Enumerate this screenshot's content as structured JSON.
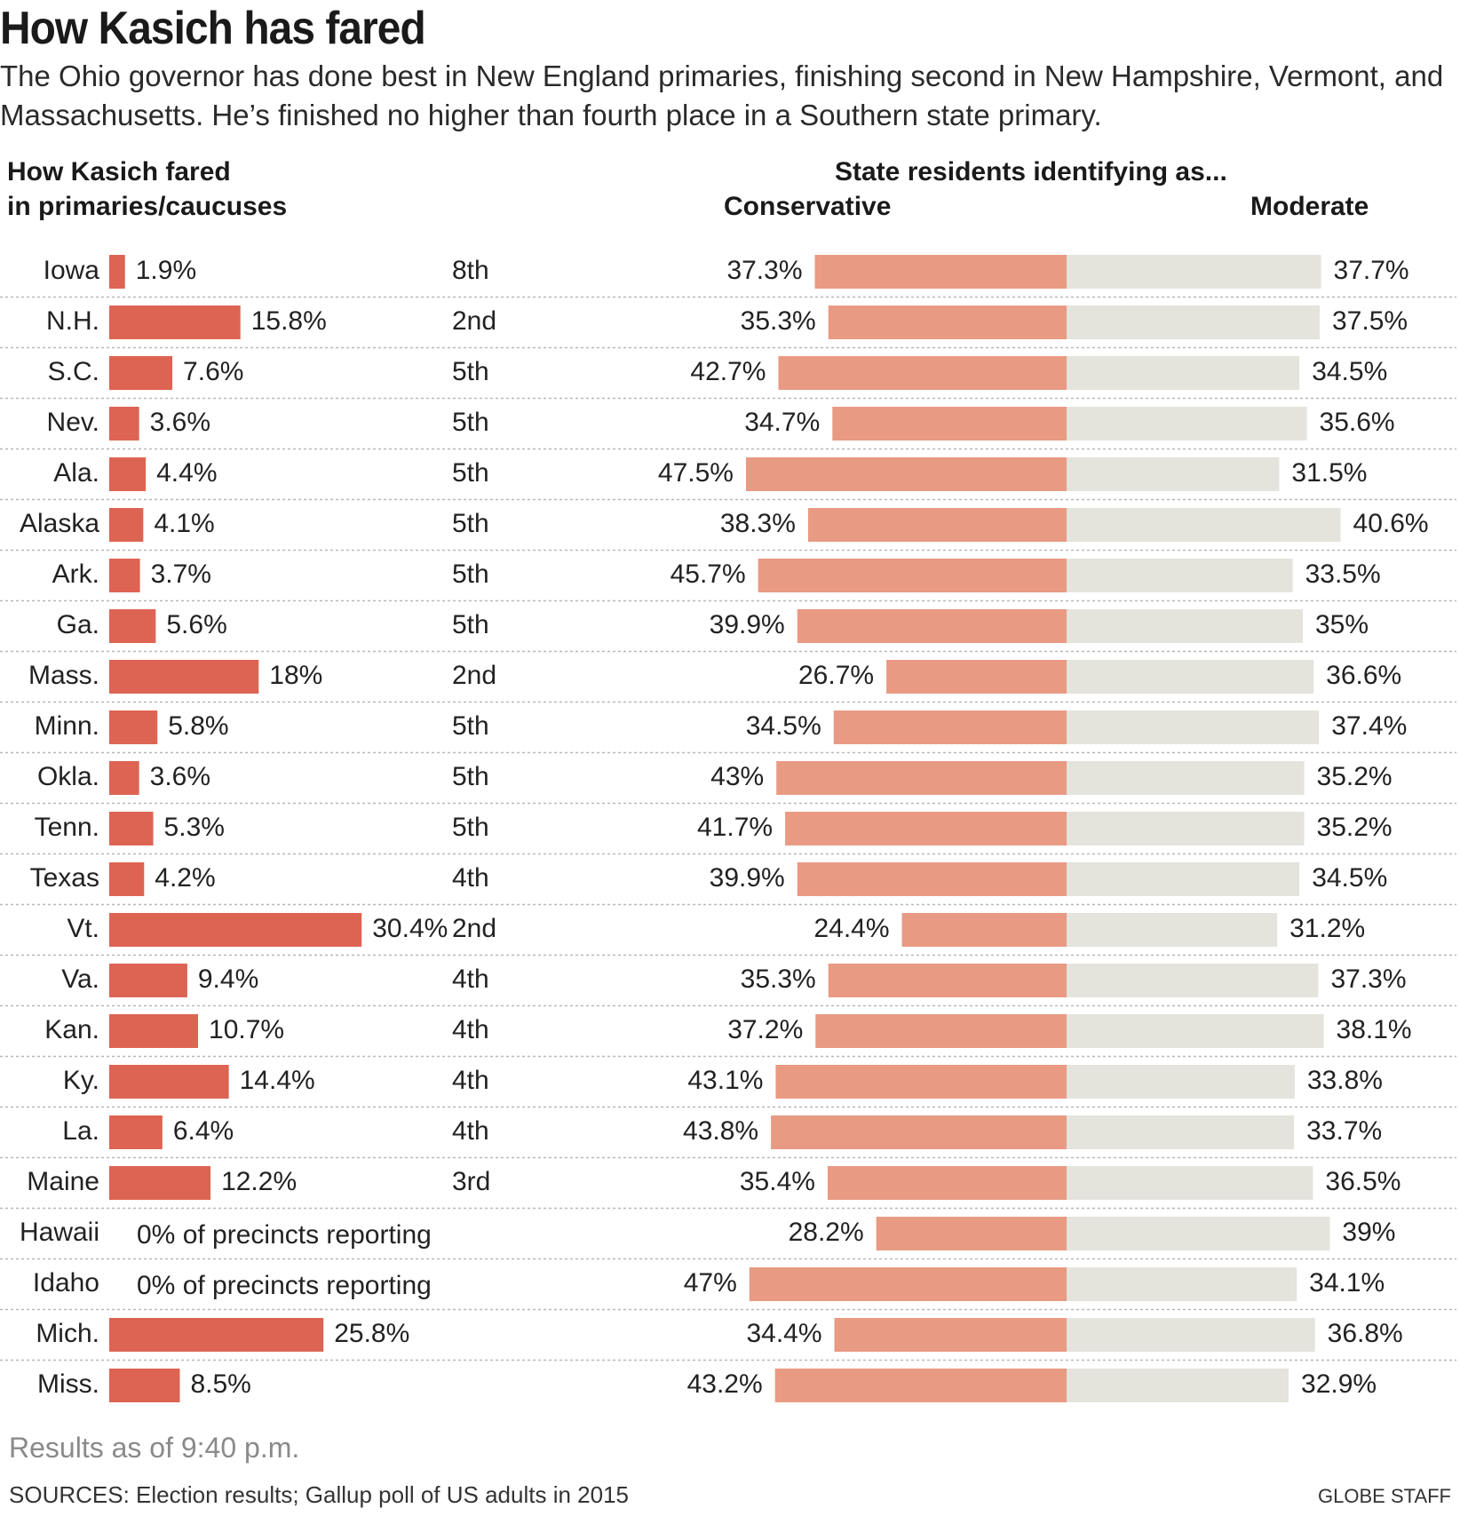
{
  "title": "How Kasich has fared",
  "subtitle": "The Ohio governor has done best in New England primaries, finishing second in New Hampshire, Vermont, and Massachusetts. He’s finished no higher than fourth place in a Southern state primary.",
  "left_header_line1": "How Kasich fared",
  "left_header_line2": "in primaries/caucuses",
  "right_header": "State residents identifying as...",
  "conservative_label": "Conservative",
  "moderate_label": "Moderate",
  "results_note": "Results as of 9:40 p.m.",
  "sources": "SOURCES: Election results; Gallup poll of US adults in 2015",
  "credit": "GLOBE STAFF",
  "colors": {
    "kasich_bar": "#dd6452",
    "conservative_bar": "#e89a83",
    "moderate_bar": "#e4e3dc",
    "divider": "#b8b8b8"
  },
  "chart_data": {
    "type": "bar",
    "states": [
      "Iowa",
      "N.H.",
      "S.C.",
      "Nev.",
      "Ala.",
      "Alaska",
      "Ark.",
      "Ga.",
      "Mass.",
      "Minn.",
      "Okla.",
      "Tenn.",
      "Texas",
      "Vt.",
      "Va.",
      "Kan.",
      "Ky.",
      "La.",
      "Maine",
      "Hawaii",
      "Idaho",
      "Mich.",
      "Miss."
    ],
    "kasich_vote_labels": [
      "1.9%",
      "15.8%",
      "7.6%",
      "3.6%",
      "4.4%",
      "4.1%",
      "3.7%",
      "5.6%",
      "18%",
      "5.8%",
      "3.6%",
      "5.3%",
      "4.2%",
      "30.4%",
      "9.4%",
      "10.7%",
      "14.4%",
      "6.4%",
      "12.2%",
      "0% of precincts reporting",
      "0% of precincts reporting",
      "25.8%",
      "8.5%"
    ],
    "kasich_vote": [
      1.9,
      15.8,
      7.6,
      3.6,
      4.4,
      4.1,
      3.7,
      5.6,
      18,
      5.8,
      3.6,
      5.3,
      4.2,
      30.4,
      9.4,
      10.7,
      14.4,
      6.4,
      12.2,
      null,
      null,
      25.8,
      8.5
    ],
    "finish": [
      "8th",
      "2nd",
      "5th",
      "5th",
      "5th",
      "5th",
      "5th",
      "5th",
      "2nd",
      "5th",
      "5th",
      "5th",
      "4th",
      "2nd",
      "4th",
      "4th",
      "4th",
      "4th",
      "3rd",
      "",
      "",
      "",
      ""
    ],
    "conservative_labels": [
      "37.3%",
      "35.3%",
      "42.7%",
      "34.7%",
      "47.5%",
      "38.3%",
      "45.7%",
      "39.9%",
      "26.7%",
      "34.5%",
      "43%",
      "41.7%",
      "39.9%",
      "24.4%",
      "35.3%",
      "37.2%",
      "43.1%",
      "43.8%",
      "35.4%",
      "28.2%",
      "47%",
      "34.4%",
      "43.2%"
    ],
    "conservative": [
      37.3,
      35.3,
      42.7,
      34.7,
      47.5,
      38.3,
      45.7,
      39.9,
      26.7,
      34.5,
      43,
      41.7,
      39.9,
      24.4,
      35.3,
      37.2,
      43.1,
      43.8,
      35.4,
      28.2,
      47,
      34.4,
      43.2
    ],
    "moderate_labels": [
      "37.7%",
      "37.5%",
      "34.5%",
      "35.6%",
      "31.5%",
      "40.6%",
      "33.5%",
      "35%",
      "36.6%",
      "37.4%",
      "35.2%",
      "35.2%",
      "34.5%",
      "31.2%",
      "37.3%",
      "38.1%",
      "33.8%",
      "33.7%",
      "36.5%",
      "39%",
      "34.1%",
      "36.8%",
      "32.9%"
    ],
    "moderate": [
      37.7,
      37.5,
      34.5,
      35.6,
      31.5,
      40.6,
      33.5,
      35,
      36.6,
      37.4,
      35.2,
      35.2,
      34.5,
      31.2,
      37.3,
      38.1,
      33.8,
      33.7,
      36.5,
      39,
      34.1,
      36.8,
      32.9
    ]
  }
}
